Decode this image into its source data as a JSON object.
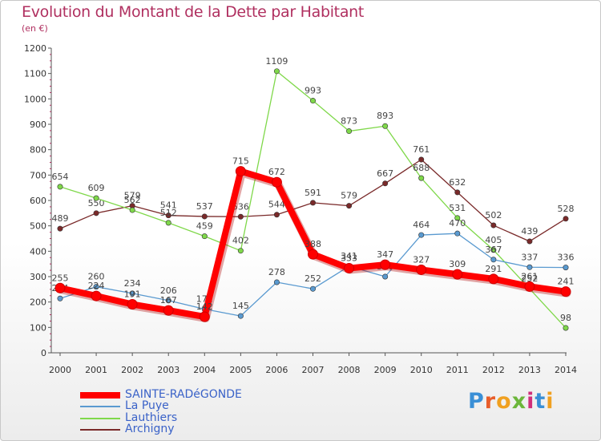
{
  "header": {
    "title": "Evolution du Montant de la Dette par Habitant",
    "subtitle": "(en €)"
  },
  "brand": {
    "letters": [
      "P",
      "r",
      "o",
      "x",
      "i",
      "t",
      "i"
    ],
    "colors": [
      "#3a8fd6",
      "#e85d2a",
      "#f0a020",
      "#6cb63a",
      "#d02f7a",
      "#3a8fd6",
      "#f0a020"
    ]
  },
  "chart_data": {
    "type": "line",
    "x": [
      "2000",
      "2001",
      "2002",
      "2003",
      "2004",
      "2005",
      "2006",
      "2007",
      "2008",
      "2009",
      "2010",
      "2011",
      "2012",
      "2013",
      "2014"
    ],
    "ylim": [
      0,
      1200
    ],
    "yticks": [
      0,
      100,
      200,
      300,
      400,
      500,
      600,
      700,
      800,
      900,
      1000,
      1100,
      1200
    ],
    "grid": false,
    "legend_position": "bottom-left",
    "series": [
      {
        "name": "Archigny",
        "color": "#7a2a2a",
        "values": [
          489,
          550,
          579,
          541,
          537,
          536,
          544,
          591,
          579,
          667,
          761,
          632,
          502,
          439,
          528
        ],
        "labels": [
          "489",
          "550",
          "579",
          "541",
          "537",
          "536",
          "544",
          "591",
          "579",
          "667",
          "761",
          "632",
          "502",
          "439",
          "528"
        ]
      },
      {
        "name": "Lauthiers",
        "color": "#7fd84a",
        "values": [
          654,
          609,
          562,
          512,
          459,
          402,
          1109,
          993,
          873,
          893,
          688,
          531,
          405,
          252,
          98
        ],
        "labels": [
          "654",
          "609",
          "562",
          "512",
          "459",
          "402",
          "1109",
          "993",
          "873",
          "893",
          "688",
          "531",
          "405",
          "252",
          "98"
        ]
      },
      {
        "name": "La Puye",
        "color": "#5a9ad0",
        "values": [
          214,
          260,
          234,
          206,
          172,
          145,
          278,
          252,
          341,
          300,
          464,
          470,
          367,
          337,
          336
        ],
        "labels": [
          "214",
          "260",
          "234",
          "206",
          "172",
          "145",
          "278",
          "252",
          "341",
          "300",
          "464",
          "470",
          "367",
          "337",
          "336"
        ]
      },
      {
        "name": "SAINTE-RADéGONDE",
        "color": "#ff0000",
        "values": [
          255,
          224,
          191,
          167,
          142,
          715,
          672,
          388,
          333,
          347,
          327,
          309,
          291,
          261,
          241
        ],
        "labels": [
          "255",
          "224",
          "191",
          "167",
          "142",
          "715",
          "672",
          "388",
          "333",
          "347",
          "327",
          "309",
          "291",
          "261",
          "241"
        ]
      }
    ],
    "legend_order": [
      "SAINTE-RADéGONDE",
      "La Puye",
      "Lauthiers",
      "Archigny"
    ]
  }
}
